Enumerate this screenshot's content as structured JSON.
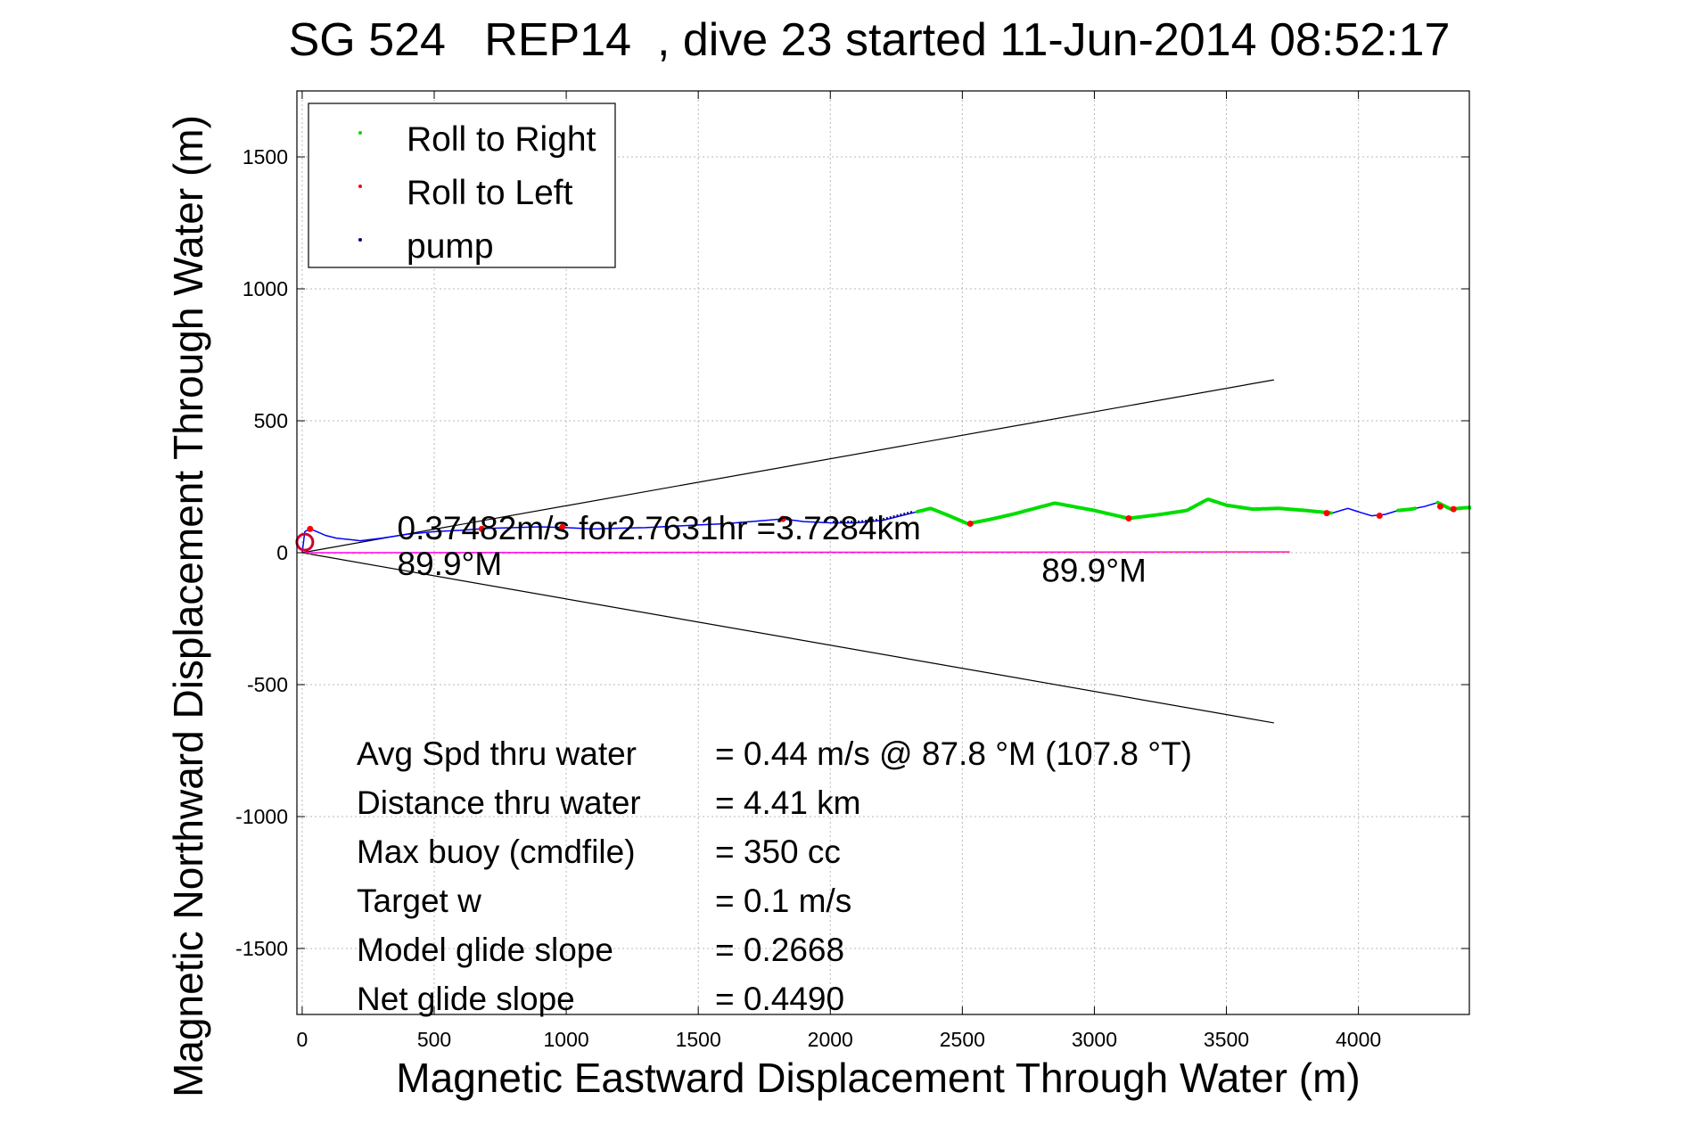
{
  "chart_data": {
    "type": "line",
    "title": "SG 524   REP14  , dive 23 started 11-Jun-2014 08:52:17",
    "xlabel": "Magnetic Eastward Displacement Through Water (m)",
    "ylabel": "Magnetic Northward Displacement Through Water (m)",
    "xlim": [
      -20,
      4420
    ],
    "ylim": [
      -1750,
      1750
    ],
    "grid": true,
    "xticks": [
      0,
      500,
      1000,
      1500,
      2000,
      2500,
      3000,
      3500,
      4000
    ],
    "yticks": [
      -1500,
      -1000,
      -500,
      0,
      500,
      1000,
      1500
    ],
    "xtick_labels": [
      "0",
      "500",
      "1000",
      "1500",
      "2000",
      "2500",
      "3000",
      "3500",
      "4000"
    ],
    "ytick_labels": [
      "-1500",
      "-1000",
      "-500",
      "0",
      "500",
      "1000",
      "1500"
    ],
    "legend": {
      "position": "top-left",
      "entries": [
        {
          "label": "Roll to Right",
          "color": "#00dd00"
        },
        {
          "label": "Roll to Left",
          "color": "#ff0000"
        },
        {
          "label": "pump",
          "color": "#000080"
        }
      ]
    },
    "track": {
      "name": "glider track",
      "color": "#0000ff",
      "x": [
        0,
        10,
        30,
        55,
        90,
        130,
        180,
        220,
        300,
        400,
        500,
        600,
        700,
        800,
        900,
        1000,
        1100,
        1200,
        1300,
        1400,
        1500,
        1600,
        1700,
        1820,
        1900,
        2000,
        2100,
        2200,
        2300,
        2380,
        2450,
        2520,
        2600,
        2700,
        2850,
        3000,
        3130,
        3250,
        3350,
        3430,
        3500,
        3600,
        3700,
        3800,
        3900,
        3960,
        4000,
        4050,
        4100,
        4150,
        4200,
        4250,
        4300,
        4350,
        4400,
        4440
      ],
      "y": [
        0,
        80,
        90,
        80,
        65,
        55,
        50,
        45,
        55,
        70,
        80,
        85,
        92,
        95,
        98,
        95,
        90,
        93,
        95,
        100,
        105,
        110,
        118,
        128,
        118,
        113,
        113,
        123,
        148,
        168,
        140,
        110,
        125,
        148,
        188,
        160,
        130,
        145,
        160,
        203,
        180,
        165,
        168,
        160,
        150,
        168,
        155,
        140,
        145,
        160,
        165,
        175,
        190,
        165,
        170,
        172
      ]
    },
    "green_segments": [
      [
        2330,
        2520
      ],
      [
        2520,
        3900
      ],
      [
        4150,
        4220
      ],
      [
        4300,
        4440
      ]
    ],
    "red_points": {
      "x": [
        30,
        680,
        985,
        1820,
        2530,
        3130,
        3880,
        4080,
        4310,
        4360
      ],
      "y": [
        90,
        90,
        97,
        128,
        110,
        130,
        150,
        140,
        175,
        165
      ]
    },
    "pump_segment": [
      2010,
      2320
    ],
    "heading_line": {
      "x": [
        0,
        3740
      ],
      "y": [
        0,
        3
      ],
      "color": "#ff00ff"
    },
    "cone_lines": [
      {
        "x": [
          0,
          3680
        ],
        "y": [
          0,
          655
        ]
      },
      {
        "x": [
          0,
          3680
        ],
        "y": [
          0,
          -645
        ]
      }
    ],
    "annotations": [
      {
        "text": "0.37482m/s for2.7631hr =3.7284km",
        "x": 360,
        "y": 50
      },
      {
        "text": "89.9°M",
        "x": 360,
        "y": -85
      },
      {
        "text": "89.9°M",
        "x": 2800,
        "y": -110
      }
    ],
    "stats": [
      {
        "label": "Avg Spd thru water",
        "value": "=  0.44 m/s @  87.8 °M (107.8 °T)"
      },
      {
        "label": "Distance thru water",
        "value": "=  4.41 km"
      },
      {
        "label": "Max buoy (cmdfile)",
        "value": "= 350 cc"
      },
      {
        "label": "Target w",
        "value": "= 0.1 m/s"
      },
      {
        "label": "Model glide slope",
        "value": "= 0.2668"
      },
      {
        "label": "Net glide slope",
        "value": "= 0.4490"
      }
    ]
  }
}
